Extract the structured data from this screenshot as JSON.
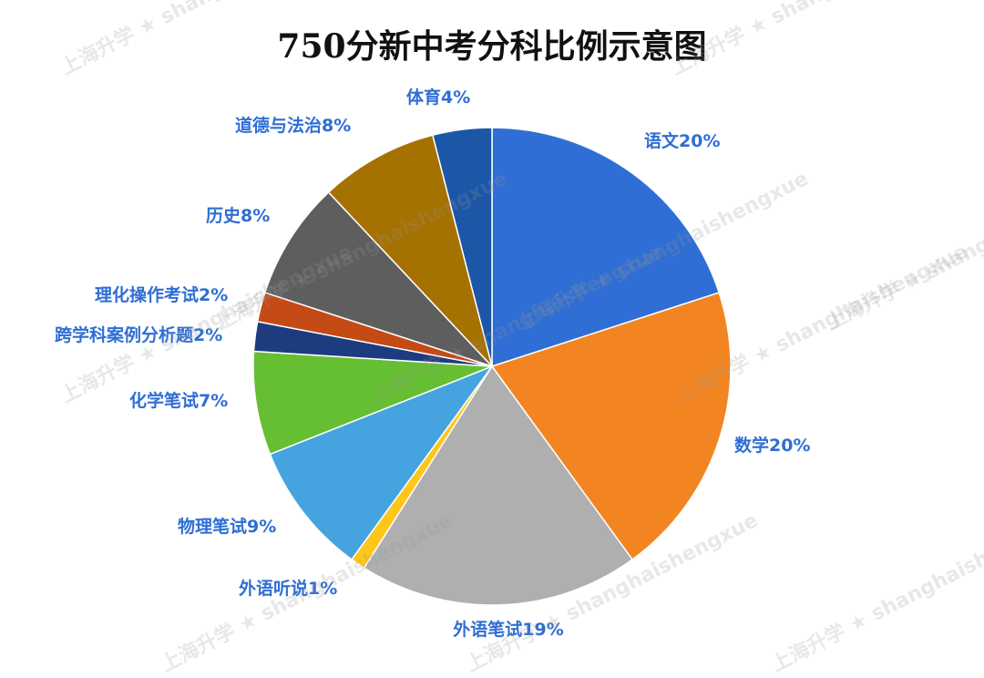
{
  "chart_data": {
    "type": "pie",
    "title": "750分新中考分科比例示意图",
    "slices": [
      {
        "label": "语文",
        "value": 20,
        "display": "语文20%",
        "color": "#2F6ED4"
      },
      {
        "label": "数学",
        "value": 20,
        "display": "数学20%",
        "color": "#F28522"
      },
      {
        "label": "外语笔试",
        "value": 19,
        "display": "外语笔试19%",
        "color": "#AFAFAF"
      },
      {
        "label": "外语听说",
        "value": 1,
        "display": "外语听说1%",
        "color": "#FFC61A"
      },
      {
        "label": "物理笔试",
        "value": 9,
        "display": "物理笔试9%",
        "color": "#45A3E0"
      },
      {
        "label": "化学笔试",
        "value": 7,
        "display": "化学笔试7%",
        "color": "#66BE33"
      },
      {
        "label": "跨学科案例分析题",
        "value": 2,
        "display": "跨学科案例分析题2%",
        "color": "#1D3C80"
      },
      {
        "label": "理化操作考试",
        "value": 2,
        "display": "理化操作考试2%",
        "color": "#C44A16"
      },
      {
        "label": "历史",
        "value": 8,
        "display": "历史8%",
        "color": "#5E5E5E"
      },
      {
        "label": "道德与法治",
        "value": 8,
        "display": "道德与法治8%",
        "color": "#A57100"
      },
      {
        "label": "体育",
        "value": 4,
        "display": "体育4%",
        "color": "#1C57A7"
      }
    ],
    "label_color": "#2F6ED4"
  },
  "watermark": "上海升学 ★ shanghaishengxue"
}
